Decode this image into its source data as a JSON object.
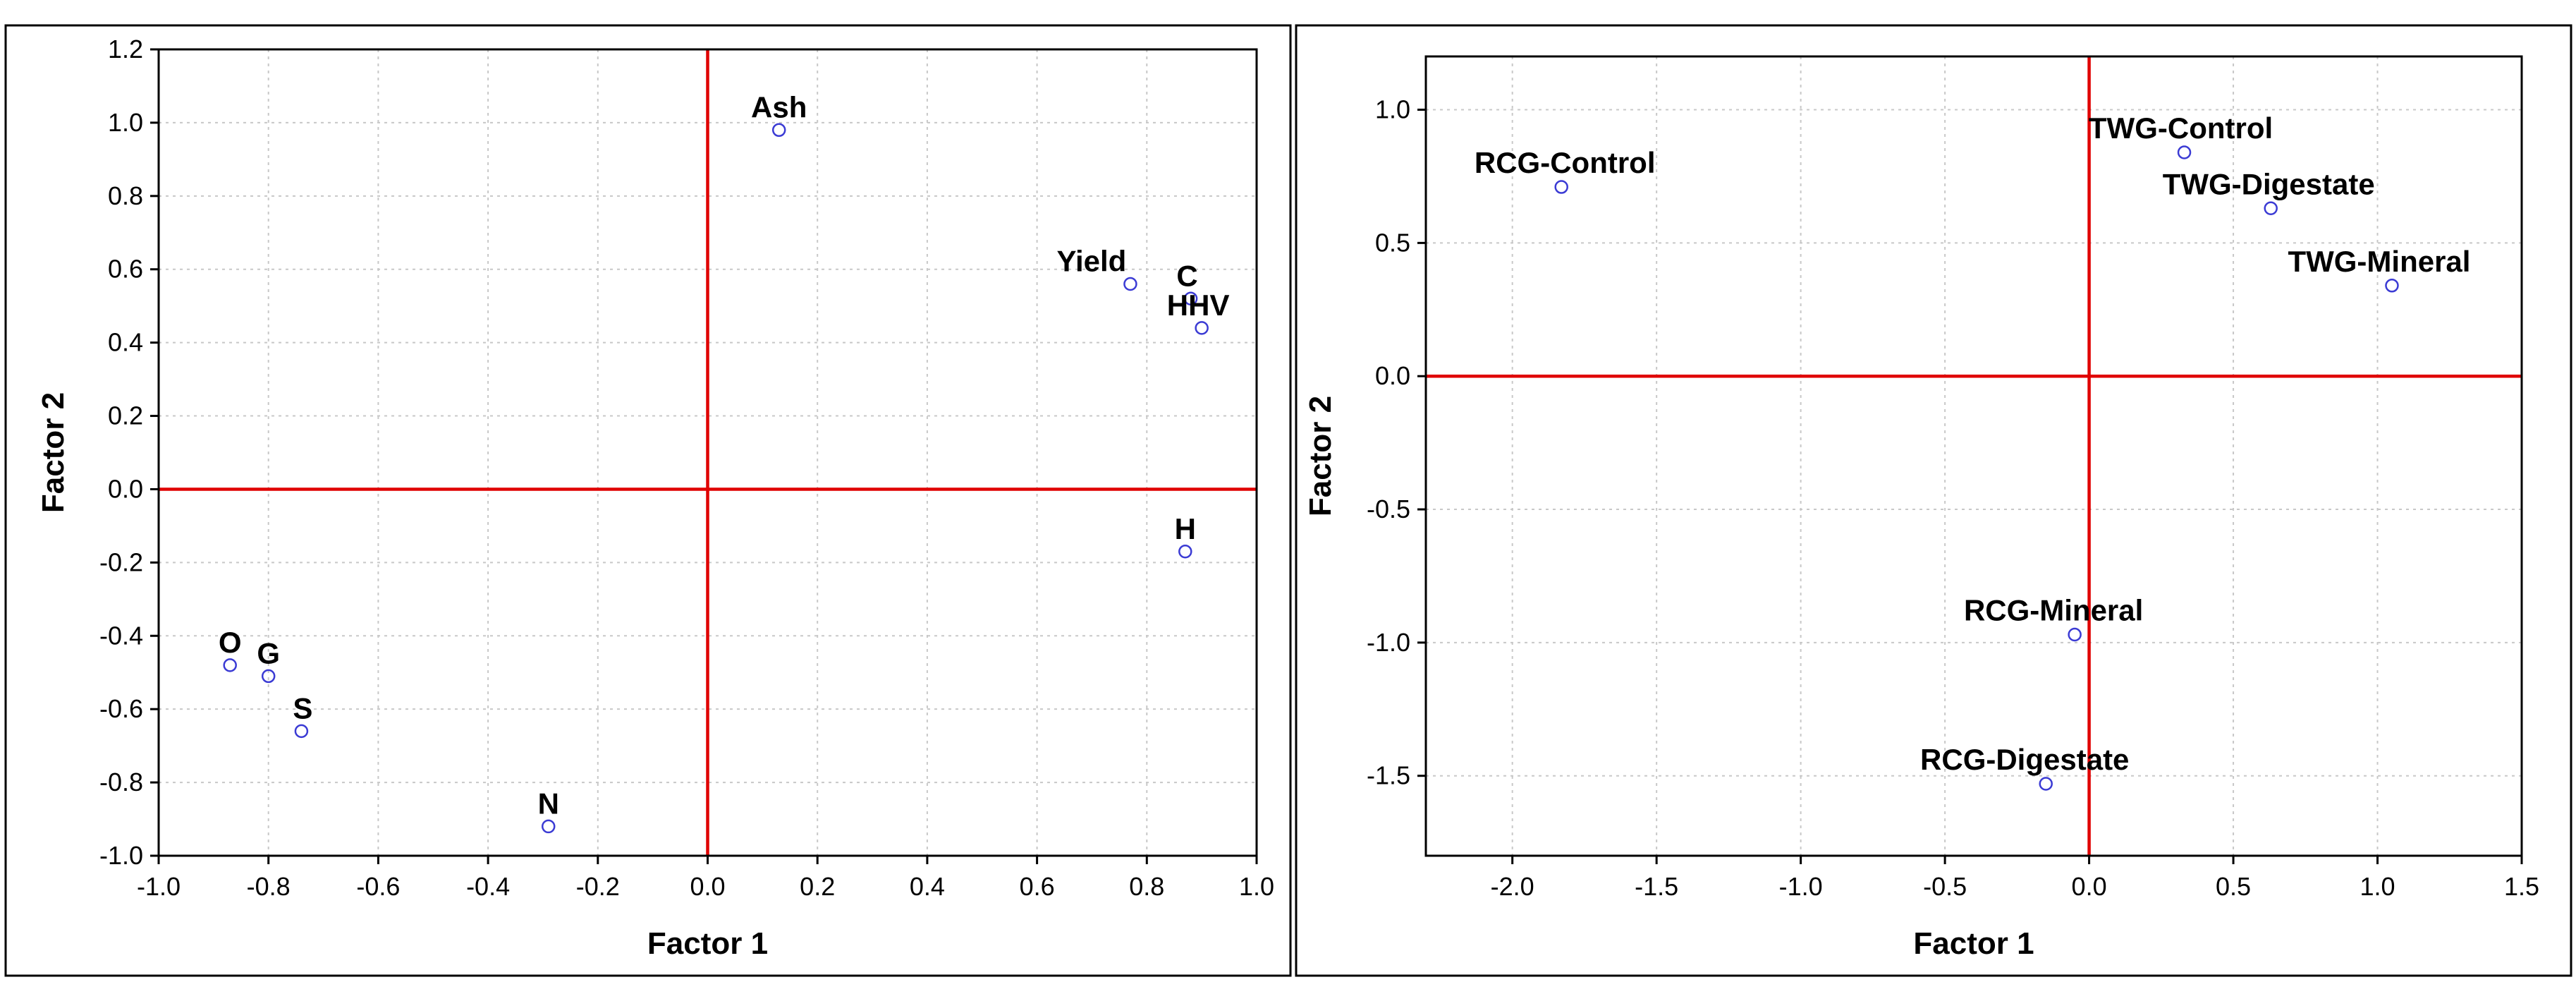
{
  "chart_data": [
    {
      "type": "scatter",
      "xlabel": "Factor 1",
      "ylabel": "Factor 2",
      "xlim": [
        -1.0,
        1.0
      ],
      "ylim": [
        -1.0,
        1.2
      ],
      "xticks": [
        "-1.0",
        "-0.8",
        "-0.6",
        "-0.4",
        "-0.2",
        "0.0",
        "0.2",
        "0.4",
        "0.6",
        "0.8",
        "1.0"
      ],
      "yticks": [
        "-1.0",
        "-0.8",
        "-0.6",
        "-0.4",
        "-0.2",
        "0.0",
        "0.2",
        "0.4",
        "0.6",
        "0.8",
        "1.0",
        "1.2"
      ],
      "grid": true,
      "reference_line_color": "#e00000",
      "marker_color": "#3b3bd4",
      "points": [
        {
          "label": "Ash",
          "x": 0.13,
          "y": 0.98
        },
        {
          "label": "Yield",
          "x": 0.77,
          "y": 0.56
        },
        {
          "label": "C",
          "x": 0.88,
          "y": 0.52
        },
        {
          "label": "HHV",
          "x": 0.9,
          "y": 0.44
        },
        {
          "label": "H",
          "x": 0.87,
          "y": -0.17
        },
        {
          "label": "O",
          "x": -0.87,
          "y": -0.48
        },
        {
          "label": "G",
          "x": -0.8,
          "y": -0.51
        },
        {
          "label": "S",
          "x": -0.74,
          "y": -0.66
        },
        {
          "label": "N",
          "x": -0.29,
          "y": -0.92
        }
      ]
    },
    {
      "type": "scatter",
      "xlabel": "Factor 1",
      "ylabel": "Factor 2",
      "xlim": [
        -2.3,
        1.5
      ],
      "ylim": [
        -1.8,
        1.2
      ],
      "xticks": [
        "-2.0",
        "-1.5",
        "-1.0",
        "-0.5",
        "0.0",
        "0.5",
        "1.0",
        "1.5"
      ],
      "yticks": [
        "-1.5",
        "-1.0",
        "-0.5",
        "0.0",
        "0.5",
        "1.0"
      ],
      "grid": true,
      "reference_line_color": "#e00000",
      "marker_color": "#3b3bd4",
      "points": [
        {
          "label": "RCG-Control",
          "x": -1.83,
          "y": 0.71
        },
        {
          "label": "TWG-Control",
          "x": 0.33,
          "y": 0.84
        },
        {
          "label": "TWG-Digestate",
          "x": 0.63,
          "y": 0.63
        },
        {
          "label": "TWG-Mineral",
          "x": 1.05,
          "y": 0.34
        },
        {
          "label": "RCG-Mineral",
          "x": -0.05,
          "y": -0.97
        },
        {
          "label": "RCG-Digestate",
          "x": -0.15,
          "y": -1.53
        }
      ]
    }
  ]
}
